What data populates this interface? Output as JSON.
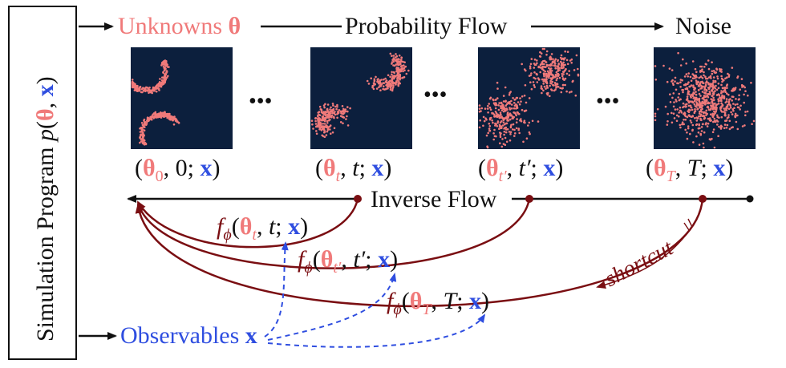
{
  "colors": {
    "theta": "#f07a7a",
    "x": "#2f4ee0",
    "flow": "#7a0e12",
    "panel_bg": "#0c1f3d",
    "particle": "#f07a7a"
  },
  "sidebar": {
    "text_plain": "Simulation Program",
    "p": "p",
    "open": "(",
    "theta": "θ",
    "comma": ", ",
    "x": "x",
    "close": ")"
  },
  "top_row": {
    "unknowns": "Unknowns",
    "theta": "θ",
    "center": "Probability Flow",
    "end": "Noise"
  },
  "ellipsis": "•••",
  "states": [
    {
      "theta": "θ",
      "sub": "0",
      "time": "0",
      "x": "x"
    },
    {
      "theta": "θ",
      "sub": "t",
      "time": "t",
      "x": "x"
    },
    {
      "theta": "θ",
      "sub": "t′",
      "time": "t′",
      "x": "x"
    },
    {
      "theta": "θ",
      "sub": "T",
      "time": "T",
      "x": "x"
    }
  ],
  "inverse_flow": "Inverse Flow",
  "networks": [
    {
      "f": "f",
      "phi": "ϕ",
      "theta": "θ",
      "sub": "t",
      "time": "t",
      "x": "x"
    },
    {
      "f": "f",
      "phi": "ϕ",
      "theta": "θ",
      "sub": "t′",
      "time": "t′",
      "x": "x"
    },
    {
      "f": "f",
      "phi": "ϕ",
      "theta": "θ",
      "sub": "T",
      "time": "T",
      "x": "x"
    }
  ],
  "shortcut": "shortcut",
  "observables": {
    "label": "Observables",
    "x": "x"
  }
}
